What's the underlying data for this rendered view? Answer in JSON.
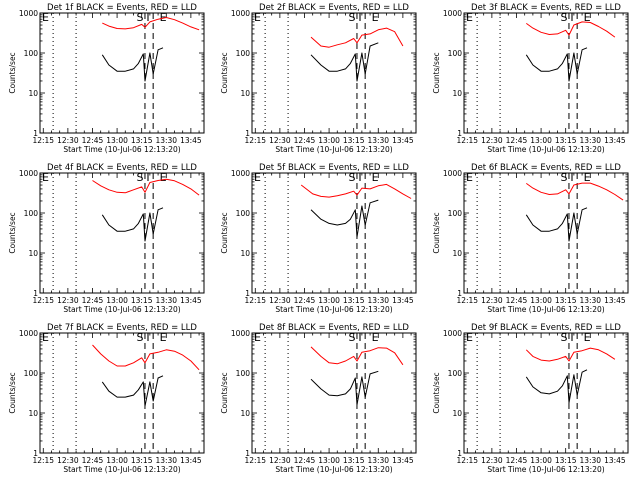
{
  "figure": {
    "xlabel": "Start Time (10-Jul-06 12:13:20)",
    "ylabel": "Counts/sec",
    "xticks": [
      "12:15",
      "12:30",
      "12:45",
      "13:00",
      "13:15",
      "13:30",
      "13:45"
    ],
    "yticks": [
      "1",
      "10",
      "100",
      "1000"
    ],
    "corner_label": "E",
    "marker_labels": [
      "S",
      "I",
      "E"
    ],
    "colors": {
      "events": "#000000",
      "lld": "#ff0000"
    }
  },
  "chart_data": [
    {
      "type": "line",
      "title": "Det 1f BLACK = Events, RED = LLD",
      "xlabel": "Start Time (10-Jul-06 12:13:20)",
      "ylabel": "Counts/sec",
      "xlim": [
        "12:13",
        "13:53"
      ],
      "ylim": [
        1,
        1000
      ],
      "yscale": "log",
      "grid": false,
      "dotted_lines": [
        "12:21",
        "12:35"
      ],
      "dashed_lines": [
        "13:17",
        "13:22"
      ],
      "series": [
        {
          "color": "red",
          "x": [
            "12:51",
            "12:55",
            "13:00",
            "13:05",
            "13:10",
            "13:15",
            "13:17",
            "13:20",
            "13:25",
            "13:30",
            "13:35",
            "13:40",
            "13:45",
            "13:50"
          ],
          "y": [
            560,
            470,
            410,
            400,
            430,
            520,
            440,
            600,
            700,
            770,
            680,
            560,
            450,
            380
          ]
        },
        {
          "color": "black",
          "x": [
            "12:51",
            "12:55",
            "13:00",
            "13:05",
            "13:10",
            "13:13",
            "13:16",
            "13:17",
            "13:20",
            "13:22",
            "13:25",
            "13:28"
          ],
          "y": [
            90,
            50,
            35,
            35,
            40,
            55,
            95,
            20,
            100,
            30,
            120,
            135
          ]
        }
      ]
    },
    {
      "type": "line",
      "title": "Det 2f BLACK = Events, RED = LLD",
      "xlabel": "Start Time (10-Jul-06 12:13:20)",
      "ylabel": "Counts/sec",
      "xlim": [
        "12:13",
        "13:53"
      ],
      "ylim": [
        1,
        1000
      ],
      "yscale": "log",
      "grid": false,
      "dotted_lines": [
        "12:21",
        "12:35"
      ],
      "dashed_lines": [
        "13:17",
        "13:22"
      ],
      "series": [
        {
          "color": "red",
          "x": [
            "12:49",
            "12:55",
            "13:00",
            "13:05",
            "13:10",
            "13:15",
            "13:17",
            "13:20",
            "13:25",
            "13:30",
            "13:35",
            "13:40",
            "13:45"
          ],
          "y": [
            250,
            150,
            140,
            160,
            180,
            230,
            180,
            280,
            300,
            380,
            420,
            340,
            150
          ]
        },
        {
          "color": "black",
          "x": [
            "12:49",
            "12:55",
            "13:00",
            "13:05",
            "13:10",
            "13:13",
            "13:16",
            "13:17",
            "13:20",
            "13:22",
            "13:25",
            "13:30"
          ],
          "y": [
            90,
            50,
            35,
            35,
            40,
            55,
            95,
            20,
            100,
            30,
            150,
            180
          ]
        }
      ]
    },
    {
      "type": "line",
      "title": "Det 3f BLACK = Events, RED = LLD",
      "xlabel": "Start Time (10-Jul-06 12:13:20)",
      "ylabel": "Counts/sec",
      "xlim": [
        "12:13",
        "13:53"
      ],
      "ylim": [
        1,
        1000
      ],
      "yscale": "log",
      "grid": false,
      "dotted_lines": [
        "12:21",
        "12:35"
      ],
      "dashed_lines": [
        "13:17",
        "13:22"
      ],
      "series": [
        {
          "color": "red",
          "x": [
            "12:51",
            "12:55",
            "13:00",
            "13:05",
            "13:10",
            "13:15",
            "13:17",
            "13:20",
            "13:25",
            "13:30",
            "13:35",
            "13:40",
            "13:45"
          ],
          "y": [
            550,
            420,
            330,
            290,
            300,
            370,
            280,
            500,
            600,
            580,
            460,
            350,
            250
          ]
        },
        {
          "color": "black",
          "x": [
            "12:51",
            "12:55",
            "13:00",
            "13:05",
            "13:10",
            "13:13",
            "13:16",
            "13:17",
            "13:20",
            "13:22",
            "13:25",
            "13:28"
          ],
          "y": [
            90,
            50,
            35,
            35,
            40,
            55,
            95,
            20,
            100,
            30,
            120,
            135
          ]
        }
      ]
    },
    {
      "type": "line",
      "title": "Det 4f BLACK = Events, RED = LLD",
      "xlabel": "Start Time (10-Jul-06 12:13:20)",
      "ylabel": "Counts/sec",
      "xlim": [
        "12:13",
        "13:53"
      ],
      "ylim": [
        1,
        1000
      ],
      "yscale": "log",
      "grid": false,
      "dotted_lines": [
        "12:21",
        "12:35"
      ],
      "dashed_lines": [
        "13:17",
        "13:22"
      ],
      "series": [
        {
          "color": "red",
          "x": [
            "12:45",
            "12:50",
            "12:55",
            "13:00",
            "13:05",
            "13:10",
            "13:15",
            "13:17",
            "13:20",
            "13:25",
            "13:30",
            "13:35",
            "13:40",
            "13:45",
            "13:50"
          ],
          "y": [
            650,
            480,
            380,
            330,
            320,
            380,
            450,
            330,
            580,
            650,
            700,
            640,
            520,
            400,
            280
          ]
        },
        {
          "color": "black",
          "x": [
            "12:51",
            "12:55",
            "13:00",
            "13:05",
            "13:10",
            "13:13",
            "13:16",
            "13:17",
            "13:20",
            "13:22",
            "13:25",
            "13:28"
          ],
          "y": [
            90,
            50,
            35,
            35,
            40,
            55,
            95,
            20,
            100,
            30,
            120,
            135
          ]
        }
      ]
    },
    {
      "type": "line",
      "title": "Det 5f BLACK = Events, RED = LLD",
      "xlabel": "Start Time (10-Jul-06 12:13:20)",
      "ylabel": "Counts/sec",
      "xlim": [
        "12:13",
        "13:53"
      ],
      "ylim": [
        1,
        1000
      ],
      "yscale": "log",
      "grid": false,
      "dotted_lines": [
        "12:21",
        "12:35"
      ],
      "dashed_lines": [
        "13:17",
        "13:22"
      ],
      "series": [
        {
          "color": "red",
          "x": [
            "12:43",
            "12:50",
            "12:55",
            "13:00",
            "13:05",
            "13:10",
            "13:15",
            "13:17",
            "13:20",
            "13:25",
            "13:30",
            "13:35",
            "13:40",
            "13:45",
            "13:50"
          ],
          "y": [
            500,
            300,
            260,
            250,
            270,
            300,
            350,
            280,
            420,
            400,
            480,
            520,
            400,
            300,
            230
          ]
        },
        {
          "color": "black",
          "x": [
            "12:49",
            "12:55",
            "13:00",
            "13:05",
            "13:10",
            "13:13",
            "13:16",
            "13:17",
            "13:20",
            "13:22",
            "13:25",
            "13:30"
          ],
          "y": [
            120,
            70,
            55,
            50,
            55,
            70,
            120,
            25,
            150,
            50,
            180,
            210
          ]
        }
      ]
    },
    {
      "type": "line",
      "title": "Det 6f BLACK = Events, RED = LLD",
      "xlabel": "Start Time (10-Jul-06 12:13:20)",
      "ylabel": "Counts/sec",
      "xlim": [
        "12:13",
        "13:53"
      ],
      "ylim": [
        1,
        1000
      ],
      "yscale": "log",
      "grid": false,
      "dotted_lines": [
        "12:21",
        "12:35"
      ],
      "dashed_lines": [
        "13:17",
        "13:22"
      ],
      "series": [
        {
          "color": "red",
          "x": [
            "12:51",
            "12:55",
            "13:00",
            "13:05",
            "13:10",
            "13:15",
            "13:17",
            "13:20",
            "13:25",
            "13:30",
            "13:35",
            "13:40",
            "13:45",
            "13:50"
          ],
          "y": [
            550,
            420,
            330,
            290,
            300,
            380,
            300,
            500,
            560,
            560,
            470,
            380,
            290,
            210
          ]
        },
        {
          "color": "black",
          "x": [
            "12:51",
            "12:55",
            "13:00",
            "13:05",
            "13:10",
            "13:13",
            "13:16",
            "13:17",
            "13:20",
            "13:22",
            "13:25",
            "13:28"
          ],
          "y": [
            90,
            50,
            35,
            35,
            40,
            55,
            95,
            20,
            100,
            30,
            120,
            135
          ]
        }
      ]
    },
    {
      "type": "line",
      "title": "Det 7f BLACK = Events, RED = LLD",
      "xlabel": "Start Time (10-Jul-06 12:13:20)",
      "ylabel": "Counts/sec",
      "xlim": [
        "12:13",
        "13:53"
      ],
      "ylim": [
        1,
        1000
      ],
      "yscale": "log",
      "grid": false,
      "dotted_lines": [
        "12:21",
        "12:35"
      ],
      "dashed_lines": [
        "13:17",
        "13:22"
      ],
      "series": [
        {
          "color": "red",
          "x": [
            "12:45",
            "12:50",
            "12:55",
            "13:00",
            "13:05",
            "13:10",
            "13:15",
            "13:17",
            "13:20",
            "13:25",
            "13:30",
            "13:35",
            "13:40",
            "13:45",
            "13:50"
          ],
          "y": [
            500,
            300,
            200,
            150,
            150,
            180,
            240,
            180,
            300,
            330,
            380,
            350,
            280,
            200,
            120
          ]
        },
        {
          "color": "black",
          "x": [
            "12:51",
            "12:55",
            "13:00",
            "13:05",
            "13:10",
            "13:13",
            "13:16",
            "13:17",
            "13:20",
            "13:22",
            "13:25",
            "13:28"
          ],
          "y": [
            60,
            35,
            25,
            25,
            28,
            38,
            60,
            15,
            60,
            20,
            75,
            85
          ]
        }
      ]
    },
    {
      "type": "line",
      "title": "Det 8f BLACK = Events, RED = LLD",
      "xlabel": "Start Time (10-Jul-06 12:13:20)",
      "ylabel": "Counts/sec",
      "xlim": [
        "12:13",
        "13:53"
      ],
      "ylim": [
        1,
        1000
      ],
      "yscale": "log",
      "grid": false,
      "dotted_lines": [
        "12:21",
        "12:35"
      ],
      "dashed_lines": [
        "13:17",
        "13:22"
      ],
      "series": [
        {
          "color": "red",
          "x": [
            "12:49",
            "12:55",
            "13:00",
            "13:05",
            "13:10",
            "13:15",
            "13:17",
            "13:20",
            "13:25",
            "13:30",
            "13:35",
            "13:40",
            "13:45"
          ],
          "y": [
            450,
            260,
            180,
            170,
            200,
            260,
            200,
            330,
            360,
            430,
            420,
            320,
            160
          ]
        },
        {
          "color": "black",
          "x": [
            "12:49",
            "12:55",
            "13:00",
            "13:05",
            "13:10",
            "13:13",
            "13:16",
            "13:17",
            "13:20",
            "13:22",
            "13:25",
            "13:30"
          ],
          "y": [
            70,
            40,
            28,
            27,
            30,
            40,
            75,
            16,
            80,
            25,
            95,
            110
          ]
        }
      ]
    },
    {
      "type": "line",
      "title": "Det 9f BLACK = Events, RED = LLD",
      "xlabel": "Start Time (10-Jul-06 12:13:20)",
      "ylabel": "Counts/sec",
      "xlim": [
        "12:13",
        "13:53"
      ],
      "ylim": [
        1,
        1000
      ],
      "yscale": "log",
      "grid": false,
      "dotted_lines": [
        "12:21",
        "12:35"
      ],
      "dashed_lines": [
        "13:17",
        "13:22"
      ],
      "series": [
        {
          "color": "red",
          "x": [
            "12:51",
            "12:55",
            "13:00",
            "13:05",
            "13:10",
            "13:15",
            "13:17",
            "13:20",
            "13:25",
            "13:30",
            "13:35",
            "13:40",
            "13:45"
          ],
          "y": [
            380,
            260,
            210,
            200,
            220,
            260,
            200,
            330,
            360,
            420,
            380,
            300,
            220
          ]
        },
        {
          "color": "black",
          "x": [
            "12:51",
            "12:55",
            "13:00",
            "13:05",
            "13:10",
            "13:13",
            "13:16",
            "13:17",
            "13:20",
            "13:22",
            "13:25",
            "13:28"
          ],
          "y": [
            80,
            45,
            32,
            30,
            35,
            48,
            85,
            18,
            90,
            28,
            105,
            120
          ]
        }
      ]
    }
  ]
}
